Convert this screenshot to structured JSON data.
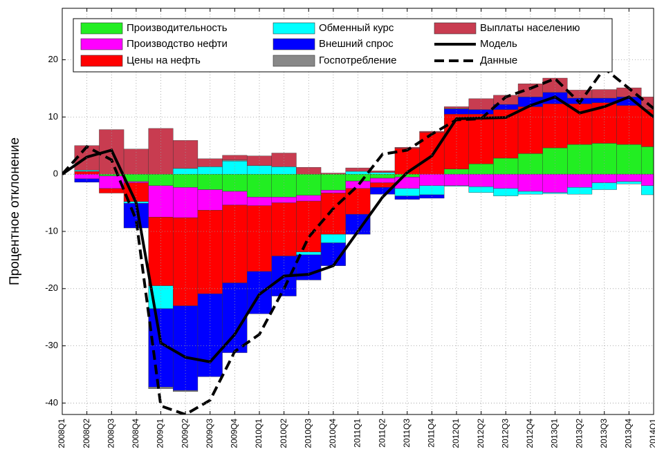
{
  "chart_data": {
    "type": "stacked_bar_line",
    "y_label": "Процентное отклонение",
    "categories": [
      "2008Q1",
      "2008Q2",
      "2008Q3",
      "2008Q4",
      "2009Q1",
      "2009Q2",
      "2009Q3",
      "2009Q4",
      "2010Q1",
      "2010Q2",
      "2010Q3",
      "2010Q4",
      "2011Q1",
      "2011Q2",
      "2011Q3",
      "2011Q4",
      "2012Q1",
      "2012Q2",
      "2012Q3",
      "2012Q4",
      "2013Q1",
      "2013Q2",
      "2013Q3",
      "2013Q4",
      "2014Q1"
    ],
    "ylim": [
      -42,
      29
    ],
    "yticks": [
      -40,
      -30,
      -20,
      -10,
      0,
      10,
      20
    ],
    "grid": true,
    "series": [
      {
        "name": "Производительность",
        "color": "#22ee22",
        "values": [
          0,
          0,
          -0.3,
          -1.3,
          -2,
          -2.3,
          -2.7,
          -3,
          -4,
          -4,
          -3.7,
          -2.8,
          -1.2,
          -0.7,
          -0.5,
          0,
          0.9,
          1.8,
          2.8,
          3.6,
          4.6,
          5.2,
          5.4,
          5.2,
          4.8
        ]
      },
      {
        "name": "Производство нефти",
        "color": "#ff00ff",
        "values": [
          0,
          -0.8,
          -2.2,
          -0.2,
          -5.5,
          -5.3,
          -3.6,
          -2.4,
          -1.5,
          -1,
          -1,
          -0.5,
          -1.3,
          -0.8,
          -2,
          -2,
          -2,
          -2.2,
          -2.5,
          -3,
          -3.2,
          -2.3,
          -1.5,
          -1.3,
          -2
        ]
      },
      {
        "name": "Цены на нефть",
        "color": "#ff0000",
        "values": [
          0,
          0.5,
          -0.8,
          -3.3,
          -12,
          -15.4,
          -14.6,
          -13.6,
          -11.5,
          -9.3,
          -8.9,
          -7.2,
          -4.5,
          -0.8,
          4.5,
          7.3,
          9.6,
          8.7,
          8.5,
          8.2,
          7.7,
          7.1,
          7.1,
          6.8,
          6.5
        ]
      },
      {
        "name": "Обменный курс",
        "color": "#00ffff",
        "values": [
          0,
          0.2,
          0,
          -0.3,
          -4,
          1,
          1.3,
          2.3,
          1.5,
          1.3,
          -0.5,
          -1.5,
          0.5,
          0.3,
          -1.3,
          -1.6,
          -0.1,
          -1,
          -1.3,
          -0.5,
          -0.2,
          -1.2,
          -1.2,
          -0.4,
          -1.6
        ]
      },
      {
        "name": "Внешний спрос",
        "color": "#0000ff",
        "values": [
          0,
          -0.6,
          0,
          -4.3,
          -13.7,
          -14.8,
          -14.5,
          -12.2,
          -7.4,
          -7,
          -4.4,
          -4,
          -3.5,
          -1.2,
          -0.6,
          -0.6,
          0.9,
          0.8,
          0.9,
          1.7,
          2,
          1,
          0.8,
          1.5,
          0
        ]
      },
      {
        "name": "Госпотребление",
        "color": "#888888",
        "values": [
          0,
          0,
          0,
          0,
          -0.3,
          -0.2,
          0,
          0.2,
          0,
          0,
          0,
          0,
          0,
          0,
          0,
          0,
          0.1,
          0,
          0,
          0,
          0,
          0,
          0,
          0,
          0
        ]
      },
      {
        "name": "Выплаты населению",
        "color": "#c83c50",
        "values": [
          0,
          4.3,
          7.8,
          4.4,
          8,
          4.9,
          1.4,
          0.8,
          1.7,
          2.4,
          1.2,
          0.2,
          0.6,
          0.3,
          0.2,
          0.2,
          0.3,
          1.9,
          1.6,
          2.3,
          2.5,
          1.4,
          1.5,
          1.6,
          2.2
        ]
      }
    ],
    "line_series": [
      {
        "name": "Модель",
        "color": "#000000",
        "style": "solid",
        "values": [
          0,
          3,
          4.2,
          -5,
          -29.5,
          -32,
          -32.8,
          -28,
          -21,
          -17.8,
          -17.5,
          -16,
          -10,
          -4,
          0.3,
          3.2,
          9.7,
          9.8,
          9.9,
          12,
          13.5,
          10.7,
          11.8,
          13.5,
          10
        ]
      },
      {
        "name": "Данные",
        "color": "#000000",
        "style": "dashed",
        "values": [
          0,
          4.8,
          2.5,
          -8,
          -40.5,
          -42,
          -39.5,
          -31,
          -28,
          -20,
          -11,
          -6,
          -2,
          3.5,
          4.2,
          7,
          9.5,
          9.7,
          13.5,
          15,
          16.7,
          12.5,
          18.5,
          15,
          11.5
        ]
      }
    ]
  }
}
